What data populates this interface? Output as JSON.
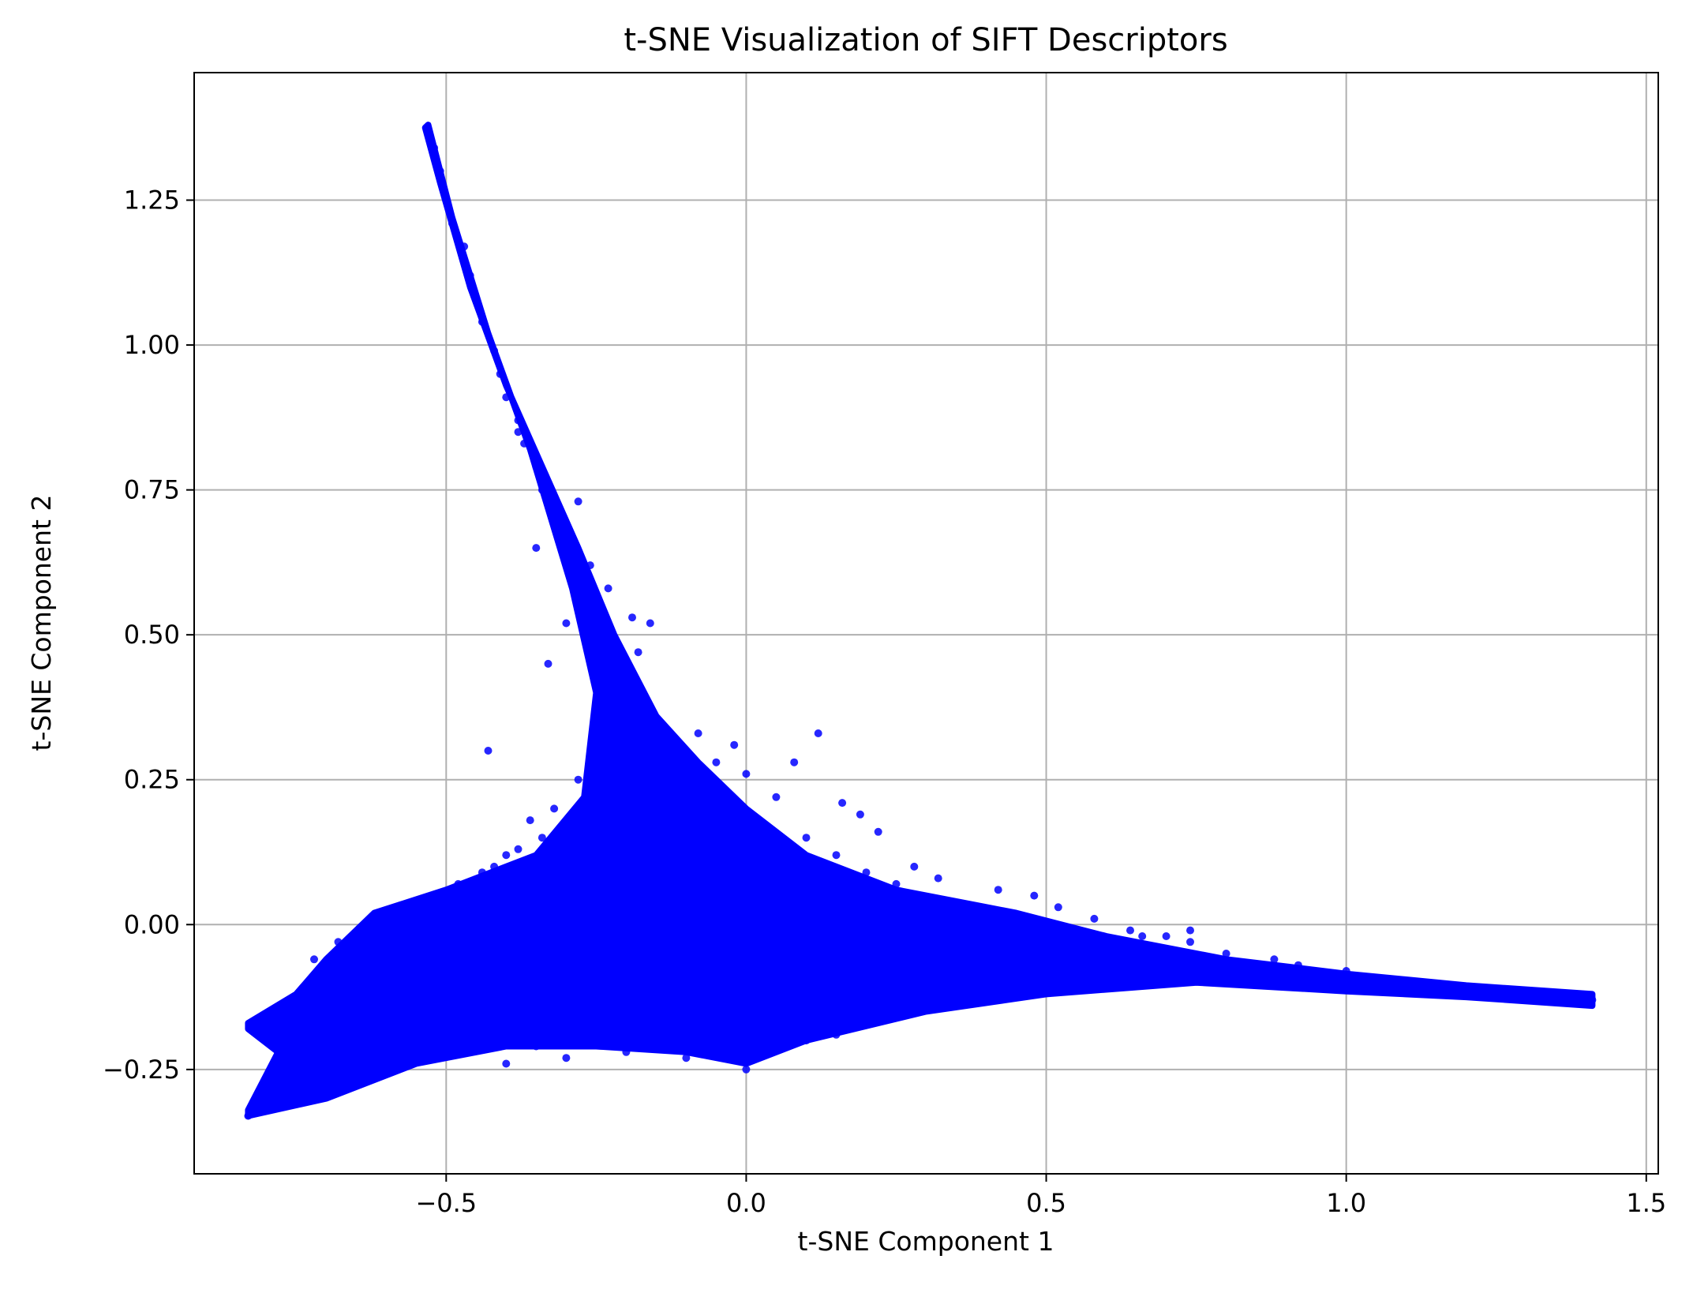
{
  "chart_data": {
    "type": "scatter",
    "title": "t-SNE Visualization of SIFT Descriptors",
    "xlabel": "t-SNE Component 1",
    "ylabel": "t-SNE Component 2",
    "xlim": [
      -0.92,
      1.52
    ],
    "ylim": [
      -0.43,
      1.47
    ],
    "xticks": [
      -0.5,
      0.0,
      0.5,
      1.0,
      1.5
    ],
    "yticks": [
      -0.25,
      0.0,
      0.25,
      0.5,
      0.75,
      1.0,
      1.25
    ],
    "xtick_labels": [
      "−0.5",
      "0.0",
      "0.5",
      "1.0",
      "1.5"
    ],
    "ytick_labels": [
      "−0.25",
      "0.00",
      "0.25",
      "0.50",
      "0.75",
      "1.00",
      "1.25"
    ],
    "grid": true,
    "series": [
      {
        "color": "#0000ff",
        "points": [
          [
            -0.53,
            1.37
          ],
          [
            -0.52,
            1.34
          ],
          [
            -0.51,
            1.3
          ],
          [
            -0.5,
            1.25
          ],
          [
            -0.49,
            1.21
          ],
          [
            -0.47,
            1.17
          ],
          [
            -0.46,
            1.12
          ],
          [
            -0.45,
            1.08
          ],
          [
            -0.44,
            1.04
          ],
          [
            -0.42,
            0.99
          ],
          [
            -0.41,
            0.95
          ],
          [
            -0.4,
            0.91
          ],
          [
            -0.38,
            0.87
          ],
          [
            -0.37,
            0.83
          ],
          [
            -0.35,
            0.79
          ],
          [
            -0.34,
            0.75
          ],
          [
            -0.32,
            0.71
          ],
          [
            -0.3,
            0.66
          ],
          [
            -0.28,
            0.61
          ],
          [
            -0.26,
            0.56
          ],
          [
            -0.24,
            0.5
          ],
          [
            -0.22,
            0.45
          ],
          [
            -0.2,
            0.4
          ],
          [
            -0.18,
            0.35
          ],
          [
            -0.15,
            0.29
          ],
          [
            -0.12,
            0.23
          ],
          [
            -0.09,
            0.17
          ],
          [
            -0.06,
            0.11
          ],
          [
            -0.03,
            0.05
          ],
          [
            -0.82,
            -0.17
          ],
          [
            -0.76,
            -0.15
          ],
          [
            -0.7,
            -0.12
          ],
          [
            -0.64,
            -0.09
          ],
          [
            -0.58,
            -0.06
          ],
          [
            -0.52,
            -0.04
          ],
          [
            -0.46,
            -0.03
          ],
          [
            -0.4,
            -0.02
          ],
          [
            -0.34,
            -0.02
          ],
          [
            -0.28,
            -0.03
          ],
          [
            -0.22,
            -0.04
          ],
          [
            -0.16,
            -0.05
          ],
          [
            -0.1,
            -0.06
          ],
          [
            -0.04,
            -0.06
          ],
          [
            0.02,
            -0.06
          ],
          [
            0.08,
            -0.06
          ],
          [
            0.14,
            -0.06
          ],
          [
            0.2,
            -0.06
          ],
          [
            0.26,
            -0.06
          ],
          [
            0.32,
            -0.06
          ],
          [
            0.38,
            -0.06
          ],
          [
            0.44,
            -0.06
          ],
          [
            0.5,
            -0.06
          ],
          [
            0.56,
            -0.06
          ],
          [
            0.62,
            -0.07
          ],
          [
            0.68,
            -0.08
          ],
          [
            0.74,
            -0.08
          ],
          [
            0.8,
            -0.09
          ],
          [
            0.86,
            -0.09
          ],
          [
            0.92,
            -0.1
          ],
          [
            0.98,
            -0.1
          ],
          [
            1.04,
            -0.11
          ],
          [
            1.1,
            -0.11
          ],
          [
            1.16,
            -0.11
          ],
          [
            1.22,
            -0.12
          ],
          [
            1.28,
            -0.12
          ],
          [
            1.34,
            -0.13
          ],
          [
            1.41,
            -0.13
          ],
          [
            -0.83,
            -0.33
          ],
          [
            -0.78,
            -0.31
          ],
          [
            -0.73,
            -0.29
          ],
          [
            -0.68,
            -0.27
          ],
          [
            -0.62,
            -0.25
          ],
          [
            -0.56,
            -0.23
          ],
          [
            -0.5,
            -0.21
          ],
          [
            -0.44,
            -0.19
          ],
          [
            -0.38,
            -0.18
          ],
          [
            -0.32,
            -0.17
          ],
          [
            -0.26,
            -0.16
          ],
          [
            -0.2,
            -0.15
          ],
          [
            -0.14,
            -0.15
          ],
          [
            -0.08,
            -0.15
          ],
          [
            -0.02,
            -0.15
          ],
          [
            0.04,
            -0.15
          ],
          [
            0.1,
            -0.15
          ],
          [
            0.16,
            -0.14
          ],
          [
            0.22,
            -0.13
          ],
          [
            0.28,
            -0.12
          ],
          [
            0.34,
            -0.11
          ],
          [
            0.4,
            -0.1
          ],
          [
            -0.75,
            -0.22
          ],
          [
            -0.68,
            -0.2
          ],
          [
            -0.6,
            -0.14
          ],
          [
            -0.55,
            -0.1
          ],
          [
            -0.5,
            -0.12
          ],
          [
            -0.45,
            -0.08
          ],
          [
            -0.4,
            -0.06
          ],
          [
            -0.35,
            -0.1
          ],
          [
            -0.3,
            -0.08
          ],
          [
            -0.25,
            -0.11
          ],
          [
            -0.2,
            -0.09
          ],
          [
            -0.15,
            -0.12
          ],
          [
            -0.1,
            -0.1
          ],
          [
            -0.05,
            -0.13
          ],
          [
            0.0,
            -0.09
          ],
          [
            0.05,
            -0.12
          ],
          [
            0.1,
            -0.08
          ],
          [
            0.15,
            -0.1
          ],
          [
            0.2,
            -0.09
          ],
          [
            0.25,
            -0.11
          ],
          [
            0.3,
            -0.08
          ],
          [
            0.35,
            -0.09
          ],
          [
            0.4,
            -0.07
          ],
          [
            0.45,
            -0.08
          ],
          [
            0.5,
            -0.05
          ],
          [
            0.55,
            -0.06
          ],
          [
            -0.6,
            0.0
          ],
          [
            -0.55,
            0.02
          ],
          [
            -0.5,
            0.03
          ],
          [
            -0.45,
            0.05
          ],
          [
            -0.4,
            0.06
          ],
          [
            -0.35,
            0.07
          ],
          [
            -0.3,
            0.08
          ],
          [
            -0.25,
            0.09
          ],
          [
            -0.2,
            0.1
          ],
          [
            -0.15,
            0.11
          ],
          [
            -0.1,
            0.12
          ],
          [
            -0.05,
            0.1
          ],
          [
            0.0,
            0.08
          ],
          [
            0.05,
            0.07
          ],
          [
            0.1,
            0.06
          ],
          [
            0.15,
            0.05
          ],
          [
            0.2,
            0.04
          ],
          [
            0.25,
            0.03
          ],
          [
            0.3,
            0.02
          ],
          [
            0.35,
            0.01
          ],
          [
            0.4,
            0.0
          ],
          [
            0.45,
            -0.01
          ],
          [
            0.5,
            -0.02
          ],
          [
            0.55,
            -0.03
          ],
          [
            0.6,
            -0.04
          ],
          [
            -0.28,
            0.25
          ],
          [
            -0.25,
            0.3
          ],
          [
            -0.22,
            0.36
          ],
          [
            -0.2,
            0.42
          ],
          [
            -0.18,
            0.47
          ],
          [
            -0.16,
            0.52
          ],
          [
            -0.14,
            0.27
          ],
          [
            -0.1,
            0.29
          ],
          [
            -0.08,
            0.33
          ],
          [
            -0.05,
            0.28
          ],
          [
            -0.02,
            0.31
          ],
          [
            0.0,
            0.26
          ],
          [
            0.05,
            0.22
          ],
          [
            0.1,
            0.15
          ],
          [
            0.15,
            0.12
          ],
          [
            0.2,
            0.09
          ],
          [
            0.25,
            0.07
          ],
          [
            -0.32,
            0.2
          ],
          [
            -0.36,
            0.18
          ],
          [
            -0.4,
            0.12
          ],
          [
            -0.44,
            0.09
          ],
          [
            -0.33,
            0.45
          ],
          [
            -0.3,
            0.52
          ],
          [
            -0.35,
            0.65
          ],
          [
            -0.38,
            0.85
          ],
          [
            -0.43,
            0.3
          ],
          [
            -0.28,
            0.73
          ],
          [
            -0.26,
            0.62
          ],
          [
            -0.23,
            0.58
          ],
          [
            -0.19,
            0.53
          ],
          [
            0.12,
            0.33
          ],
          [
            0.08,
            0.28
          ],
          [
            0.16,
            0.21
          ],
          [
            0.19,
            0.19
          ],
          [
            0.22,
            0.16
          ],
          [
            0.28,
            0.1
          ],
          [
            0.32,
            0.08
          ],
          [
            0.42,
            0.06
          ],
          [
            0.48,
            0.05
          ],
          [
            0.52,
            0.03
          ],
          [
            0.58,
            0.01
          ],
          [
            0.64,
            -0.01
          ],
          [
            0.7,
            -0.02
          ],
          [
            0.74,
            -0.03
          ],
          [
            0.8,
            -0.05
          ],
          [
            0.88,
            -0.06
          ],
          [
            0.92,
            -0.07
          ],
          [
            1.0,
            -0.08
          ],
          [
            0.74,
            -0.01
          ],
          [
            0.66,
            -0.02
          ],
          [
            -0.55,
            -0.18
          ],
          [
            -0.5,
            -0.22
          ],
          [
            -0.45,
            -0.2
          ],
          [
            -0.4,
            -0.24
          ],
          [
            -0.35,
            -0.21
          ],
          [
            -0.3,
            -0.23
          ],
          [
            -0.25,
            -0.2
          ],
          [
            -0.2,
            -0.22
          ],
          [
            -0.15,
            -0.21
          ],
          [
            -0.1,
            -0.23
          ],
          [
            -0.05,
            -0.22
          ],
          [
            0.0,
            -0.25
          ],
          [
            0.05,
            -0.21
          ],
          [
            0.1,
            -0.2
          ],
          [
            0.15,
            -0.19
          ],
          [
            0.2,
            -0.17
          ],
          [
            0.25,
            -0.16
          ],
          [
            0.3,
            -0.14
          ],
          [
            0.35,
            -0.14
          ],
          [
            0.4,
            -0.12
          ],
          [
            0.45,
            -0.12
          ],
          [
            0.5,
            -0.11
          ],
          [
            0.55,
            -0.1
          ],
          [
            0.6,
            -0.1
          ],
          [
            0.65,
            -0.1
          ],
          [
            0.7,
            -0.09
          ],
          [
            -0.65,
            -0.05
          ],
          [
            -0.7,
            -0.08
          ],
          [
            -0.72,
            -0.06
          ],
          [
            -0.68,
            -0.03
          ],
          [
            -0.62,
            -0.02
          ],
          [
            -0.58,
            0.01
          ],
          [
            -0.52,
            0.04
          ],
          [
            -0.48,
            0.07
          ],
          [
            -0.42,
            0.1
          ],
          [
            -0.38,
            0.13
          ],
          [
            -0.34,
            0.15
          ],
          [
            -0.3,
            0.16
          ],
          [
            -0.26,
            0.18
          ],
          [
            -0.22,
            0.2
          ],
          [
            -0.18,
            0.23
          ],
          [
            -0.12,
            0.22
          ],
          [
            -0.06,
            0.18
          ],
          [
            0.02,
            0.16
          ],
          [
            0.06,
            0.13
          ],
          [
            0.12,
            0.11
          ]
        ]
      }
    ]
  }
}
